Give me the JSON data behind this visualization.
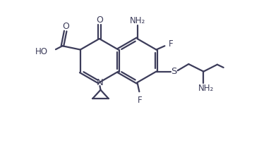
{
  "bg_color": "#ffffff",
  "bond_color": "#3c3c5a",
  "text_color": "#3c3c5a",
  "line_width": 1.6,
  "font_size": 8.5,
  "xlim": [
    0,
    10
  ],
  "ylim": [
    0,
    5.8
  ]
}
